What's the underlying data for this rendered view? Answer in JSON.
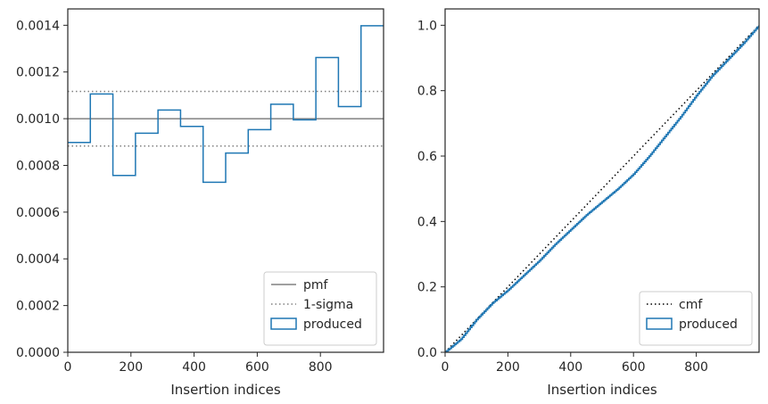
{
  "chart_data": [
    {
      "type": "step-histogram",
      "xlabel": "Insertion indices",
      "ylabel": "",
      "xlim": [
        0,
        1000
      ],
      "ylim": [
        0,
        0.00147
      ],
      "xticks": [
        0,
        200,
        400,
        600,
        800
      ],
      "xtick_labels": [
        "0",
        "200",
        "400",
        "600",
        "800"
      ],
      "yticks": [
        0,
        0.0002,
        0.0004,
        0.0006,
        0.0008,
        0.001,
        0.0012,
        0.0014
      ],
      "ytick_labels": [
        "0.0000",
        "0.0002",
        "0.0004",
        "0.0006",
        "0.0008",
        "0.0010",
        "0.0012",
        "0.0014"
      ],
      "grid": false,
      "legend_position": "lower-right",
      "pmf": 0.001,
      "sigma_lines": [
        0.000883,
        0.001117
      ],
      "bin_edges": [
        0,
        71.4,
        142.9,
        214.3,
        285.7,
        357.1,
        428.6,
        500,
        571.4,
        642.9,
        714.3,
        785.7,
        857.1,
        928.6,
        1000
      ],
      "values": [
        0.000898,
        0.001106,
        0.000757,
        0.000938,
        0.001037,
        0.000967,
        0.000728,
        0.000853,
        0.000953,
        0.001062,
        0.000995,
        0.001262,
        0.001052,
        0.001398
      ],
      "series": [
        {
          "name": "pmf",
          "style": "solid",
          "color": "#808080"
        },
        {
          "name": "1-sigma",
          "style": "dotted",
          "color": "#808080"
        },
        {
          "name": "produced",
          "style": "step",
          "color": "#1f77b4"
        }
      ]
    },
    {
      "type": "line",
      "xlabel": "Insertion indices",
      "ylabel": "",
      "xlim": [
        0,
        1000
      ],
      "ylim": [
        0,
        1.05
      ],
      "xticks": [
        0,
        200,
        400,
        600,
        800
      ],
      "xtick_labels": [
        "0",
        "200",
        "400",
        "600",
        "800"
      ],
      "yticks": [
        0,
        0.2,
        0.4,
        0.6,
        0.8,
        1.0
      ],
      "ytick_labels": [
        "0.0",
        "0.2",
        "0.4",
        "0.6",
        "0.8",
        "1.0"
      ],
      "grid": false,
      "legend_position": "lower-right",
      "series": [
        {
          "name": "cmf",
          "style": "dotted",
          "color": "#000000",
          "x": [
            0,
            1000
          ],
          "y": [
            0,
            1
          ]
        },
        {
          "name": "produced",
          "style": "step",
          "color": "#1f77b4",
          "x": [
            0,
            50,
            100,
            150,
            200,
            250,
            300,
            350,
            400,
            450,
            500,
            550,
            600,
            650,
            700,
            750,
            800,
            850,
            900,
            950,
            1000
          ],
          "y": [
            0,
            0.04,
            0.1,
            0.15,
            0.19,
            0.235,
            0.28,
            0.33,
            0.375,
            0.42,
            0.46,
            0.5,
            0.545,
            0.6,
            0.66,
            0.72,
            0.785,
            0.845,
            0.895,
            0.945,
            1.0
          ]
        }
      ]
    }
  ]
}
